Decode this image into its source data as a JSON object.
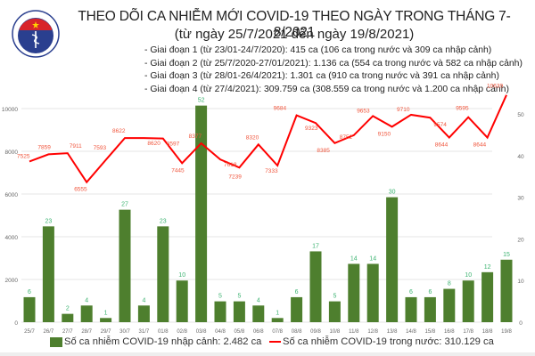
{
  "header": {
    "title": "THEO DÕI CA NHIỄM MỚI COVID-19 THEO NGÀY TRONG THÁNG 7-8/2021",
    "subtitle": "(từ ngày 25/7/2021 đến ngày 19/8/2021)",
    "logo_label": "BỘ Y TẾ",
    "phases": [
      "- Giai đoạn 1 (từ 23/01-24/7/2020): 415 ca (106 ca trong nước và 309 ca nhập cảnh)",
      "- Giai đoạn 2 (từ 25/7/2020-27/01/2021): 1.136 ca (554 ca trong nước và 582 ca nhập cảnh)",
      "- Giai đoạn 3 (từ 28/01-26/4/2021): 1.301 ca (910 ca trong nước và 391 ca nhập cảnh)",
      "- Giai đoạn 4 (từ 27/4/2021): 309.759 ca (308.559 ca trong nước và 1.200 ca nhập cảnh)"
    ]
  },
  "legend": {
    "bar_label": "Số ca nhiễm COVID-19 nhập cảnh: 2.482 ca",
    "line_label": "Số ca nhiễm COVID-19 trong nước: 310.129 ca"
  },
  "colors": {
    "bar": "#4e7f2e",
    "bar_label": "#3cb371",
    "line": "#ff0000",
    "line_label": "#f0553c",
    "grid": "#e6e6e6",
    "axis_text": "#666666"
  },
  "chart_data": {
    "type": "bar+line",
    "title": "THEO DÕI CA NHIỄM MỚI COVID-19 THEO NGÀY TRONG THÁNG 7-8/2021",
    "subtitle": "(từ ngày 25/7/2021 đến ngày 19/8/2021)",
    "categories": [
      "25/7",
      "26/7",
      "27/7",
      "28/7",
      "29/7",
      "30/7",
      "31/7",
      "01/8",
      "02/8",
      "03/8",
      "04/8",
      "05/8",
      "06/8",
      "07/8",
      "08/8",
      "09/8",
      "10/8",
      "11/8",
      "12/8",
      "13/8",
      "14/8",
      "15/8",
      "16/8",
      "17/8",
      "18/8",
      "19/8"
    ],
    "series": [
      {
        "name": "Số ca nhiễm COVID-19 nhập cảnh: 2.482 ca",
        "type": "bar",
        "axis": "right",
        "values": [
          6,
          23,
          2,
          4,
          1,
          27,
          4,
          23,
          10,
          52,
          5,
          5,
          4,
          1,
          6,
          17,
          5,
          14,
          14,
          30,
          6,
          6,
          8,
          10,
          12,
          15
        ]
      },
      {
        "name": "Số ca nhiễm COVID-19 trong nước: 310.129 ca",
        "type": "line",
        "axis": "left",
        "values": [
          7525,
          7859,
          7911,
          6555,
          7593,
          8622,
          8620,
          8597,
          7445,
          8377,
          7618,
          7239,
          8320,
          7333,
          9684,
          9323,
          8385,
          8752,
          9653,
          9150,
          9710,
          9574,
          8644,
          9595,
          8644,
          10639
        ]
      }
    ],
    "left_axis": {
      "ticks": [
        0,
        2000,
        4000,
        6000,
        8000,
        10000
      ],
      "ylim": [
        0,
        10000
      ]
    },
    "right_axis": {
      "ticks": [
        0,
        10,
        20,
        30,
        40,
        50
      ],
      "ylim": [
        0,
        50
      ]
    },
    "xlabel": "",
    "ylabel": "",
    "grid": true,
    "legend_position": "bottom"
  }
}
